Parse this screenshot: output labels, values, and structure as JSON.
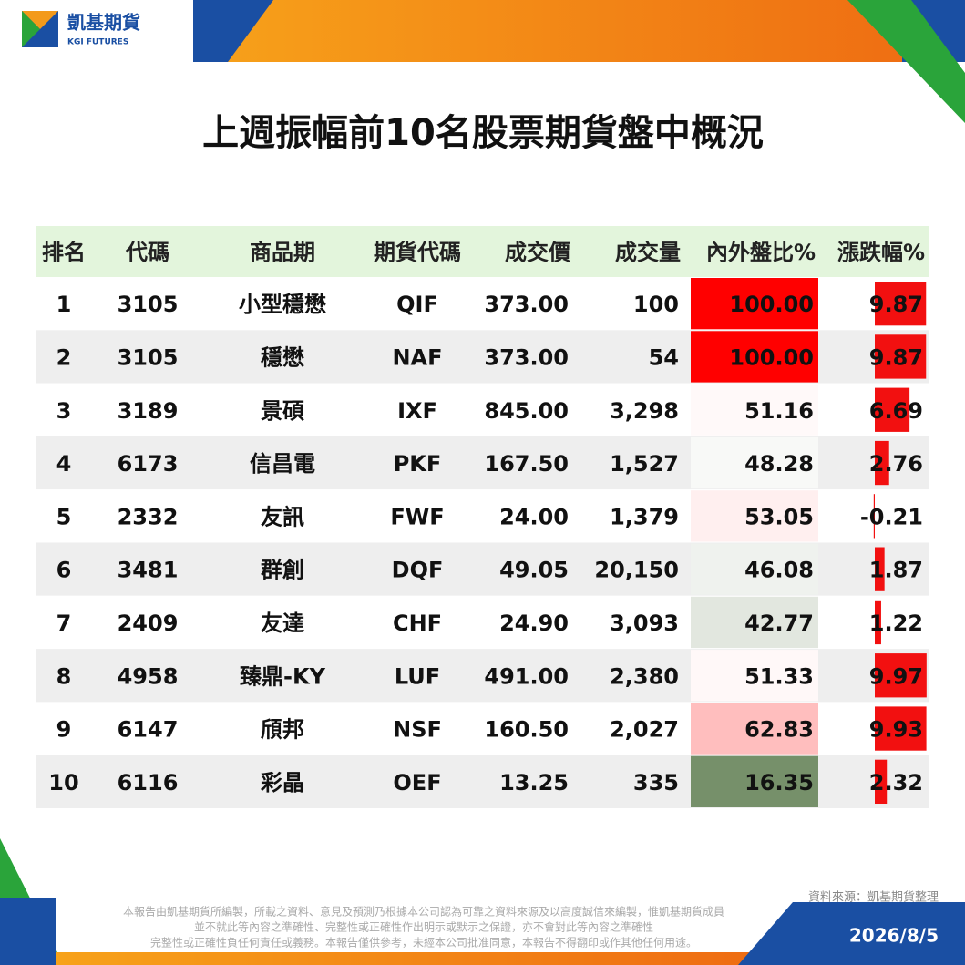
{
  "header": {
    "brand": "凱基期貨",
    "brand_sub": "KGI FUTURES"
  },
  "title": "上週振幅前10名股票期貨盤中概況",
  "table": {
    "columns": [
      "排名",
      "代碼",
      "商品期",
      "期貨代碼",
      "成交價",
      "成交量",
      "內外盤比%",
      "漲跌幅%"
    ],
    "rows": [
      [
        "1",
        "3105",
        "小型穩懋",
        "QIF",
        "373.00",
        "100",
        "100.00",
        "9.87"
      ],
      [
        "2",
        "3105",
        "穩懋",
        "NAF",
        "373.00",
        "54",
        "100.00",
        "9.87"
      ],
      [
        "3",
        "3189",
        "景碩",
        "IXF",
        "845.00",
        "3,298",
        "51.16",
        "6.69"
      ],
      [
        "4",
        "6173",
        "信昌電",
        "PKF",
        "167.50",
        "1,527",
        "48.28",
        "2.76"
      ],
      [
        "5",
        "2332",
        "友訊",
        "FWF",
        "24.00",
        "1,379",
        "53.05",
        "-0.21"
      ],
      [
        "6",
        "3481",
        "群創",
        "DQF",
        "49.05",
        "20,150",
        "46.08",
        "1.87"
      ],
      [
        "7",
        "2409",
        "友達",
        "CHF",
        "24.90",
        "3,093",
        "42.77",
        "1.22"
      ],
      [
        "8",
        "4958",
        "臻鼎-KY",
        "LUF",
        "491.00",
        "2,380",
        "51.33",
        "9.97"
      ],
      [
        "9",
        "6147",
        "頎邦",
        "NSF",
        "160.50",
        "2,027",
        "62.83",
        "9.93"
      ],
      [
        "10",
        "6116",
        "彩晶",
        "OEF",
        "13.25",
        "335",
        "16.35",
        "2.32"
      ]
    ]
  },
  "footer": {
    "source": "資料來源：凱基期貨整理",
    "disclaimer": [
      "本報告由凱基期貨所編製，所載之資料、意見及預測乃根據本公司認為可靠之資料來源及以高度誠信來編製，惟凱基期貨成員",
      "並不就此等內容之準確性、完整性或正確性作出明示或默示之保證，亦不會對此等內容之準確性",
      "完整性或正確性負任何責任或義務。本報告僅供參考，未經本公司批准同意，本報告不得翻印或作其他任何用途。"
    ],
    "date": "2026/8/5"
  }
}
